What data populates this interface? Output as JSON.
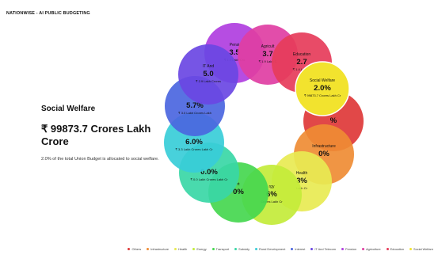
{
  "brand": "NATIONWISE - AI PUBLIC BUDGETING",
  "detail": {
    "title": "Social Welfare",
    "amount": "₹ 99873.7 Crores Lakh Crore",
    "description": "2.0% of the total Union Budget is allocated to social welfare."
  },
  "chart_data": {
    "type": "pie",
    "segments": [
      {
        "name": "Pension",
        "name_shown": "Pensi",
        "percent_shown": "3.5",
        "amount_shown": "₹ 1.9 Lakh Cro",
        "color": "#b03ee0"
      },
      {
        "name": "Agriculture",
        "name_shown": "Agricult",
        "percent_shown": "3.7",
        "amount_shown": "₹ 1.9 Lakh C",
        "color": "#e03ea3"
      },
      {
        "name": "Education",
        "name_shown": "Education",
        "percent_shown": "2.7",
        "amount_shown": "₹ 1.4 Lakh C",
        "color": "#e63c5a"
      },
      {
        "name": "Social Welfare",
        "name_shown": "Social Welfare",
        "percent_shown": "2.0%",
        "amount_shown": "₹ 99873.7 Crores Lakh Cr",
        "color": "#f2e32e"
      },
      {
        "name": "Others",
        "name_shown": "",
        "percent_shown": "%",
        "amount_shown": "",
        "color": "#de3838"
      },
      {
        "name": "Infrastructure",
        "name_shown": "Infrastructure",
        "percent_shown": "0%",
        "amount_shown": "",
        "color": "#ef8c34"
      },
      {
        "name": "Health",
        "name_shown": "Health",
        "percent_shown": "3%",
        "amount_shown": "Lakh Cr",
        "color": "#e8ea52"
      },
      {
        "name": "Energy",
        "name_shown": "rgy",
        "percent_shown": "6%",
        "amount_shown": "Crores Lakh Cr",
        "color": "#c3ec3a"
      },
      {
        "name": "Transport",
        "name_shown": "rt",
        "percent_shown": "0%",
        "amount_shown": "",
        "color": "#45d74f"
      },
      {
        "name": "Subsidy",
        "name_shown": "",
        "percent_shown": "0.0%",
        "amount_shown": "₹ 0.0 Lakh Crores Lakh Cr",
        "color": "#3ad7a6"
      },
      {
        "name": "Rural Development",
        "name_shown": "",
        "percent_shown": "6.0%",
        "amount_shown": "₹ 3.3 Lakh Crores Lakh Cr",
        "color": "#38cdd8"
      },
      {
        "name": "Interest",
        "name_shown": "",
        "percent_shown": "5.7%",
        "amount_shown": "₹ 3.0 Lakh Crores Lakh",
        "color": "#4b66e0"
      },
      {
        "name": "IT And Telecom",
        "name_shown": "IT And",
        "percent_shown": "5.0",
        "amount_shown": "₹ 2.9 Lakh Crores",
        "color": "#6a46e3"
      }
    ]
  },
  "legend": [
    {
      "label": "Others",
      "color": "#de3838"
    },
    {
      "label": "Infrastructure",
      "color": "#ef8c34"
    },
    {
      "label": "Health",
      "color": "#e8ea52"
    },
    {
      "label": "Energy",
      "color": "#c3ec3a"
    },
    {
      "label": "Transport",
      "color": "#45d74f"
    },
    {
      "label": "Subsidy",
      "color": "#3ad7a6"
    },
    {
      "label": "Rural Development",
      "color": "#38cdd8"
    },
    {
      "label": "Interest",
      "color": "#4b66e0"
    },
    {
      "label": "IT And Telecom",
      "color": "#6a46e3"
    },
    {
      "label": "Pension",
      "color": "#b03ee0"
    },
    {
      "label": "Agriculture",
      "color": "#e03ea3"
    },
    {
      "label": "Education",
      "color": "#e63c5a"
    },
    {
      "label": "Social Welfare",
      "color": "#f2e32e"
    }
  ]
}
